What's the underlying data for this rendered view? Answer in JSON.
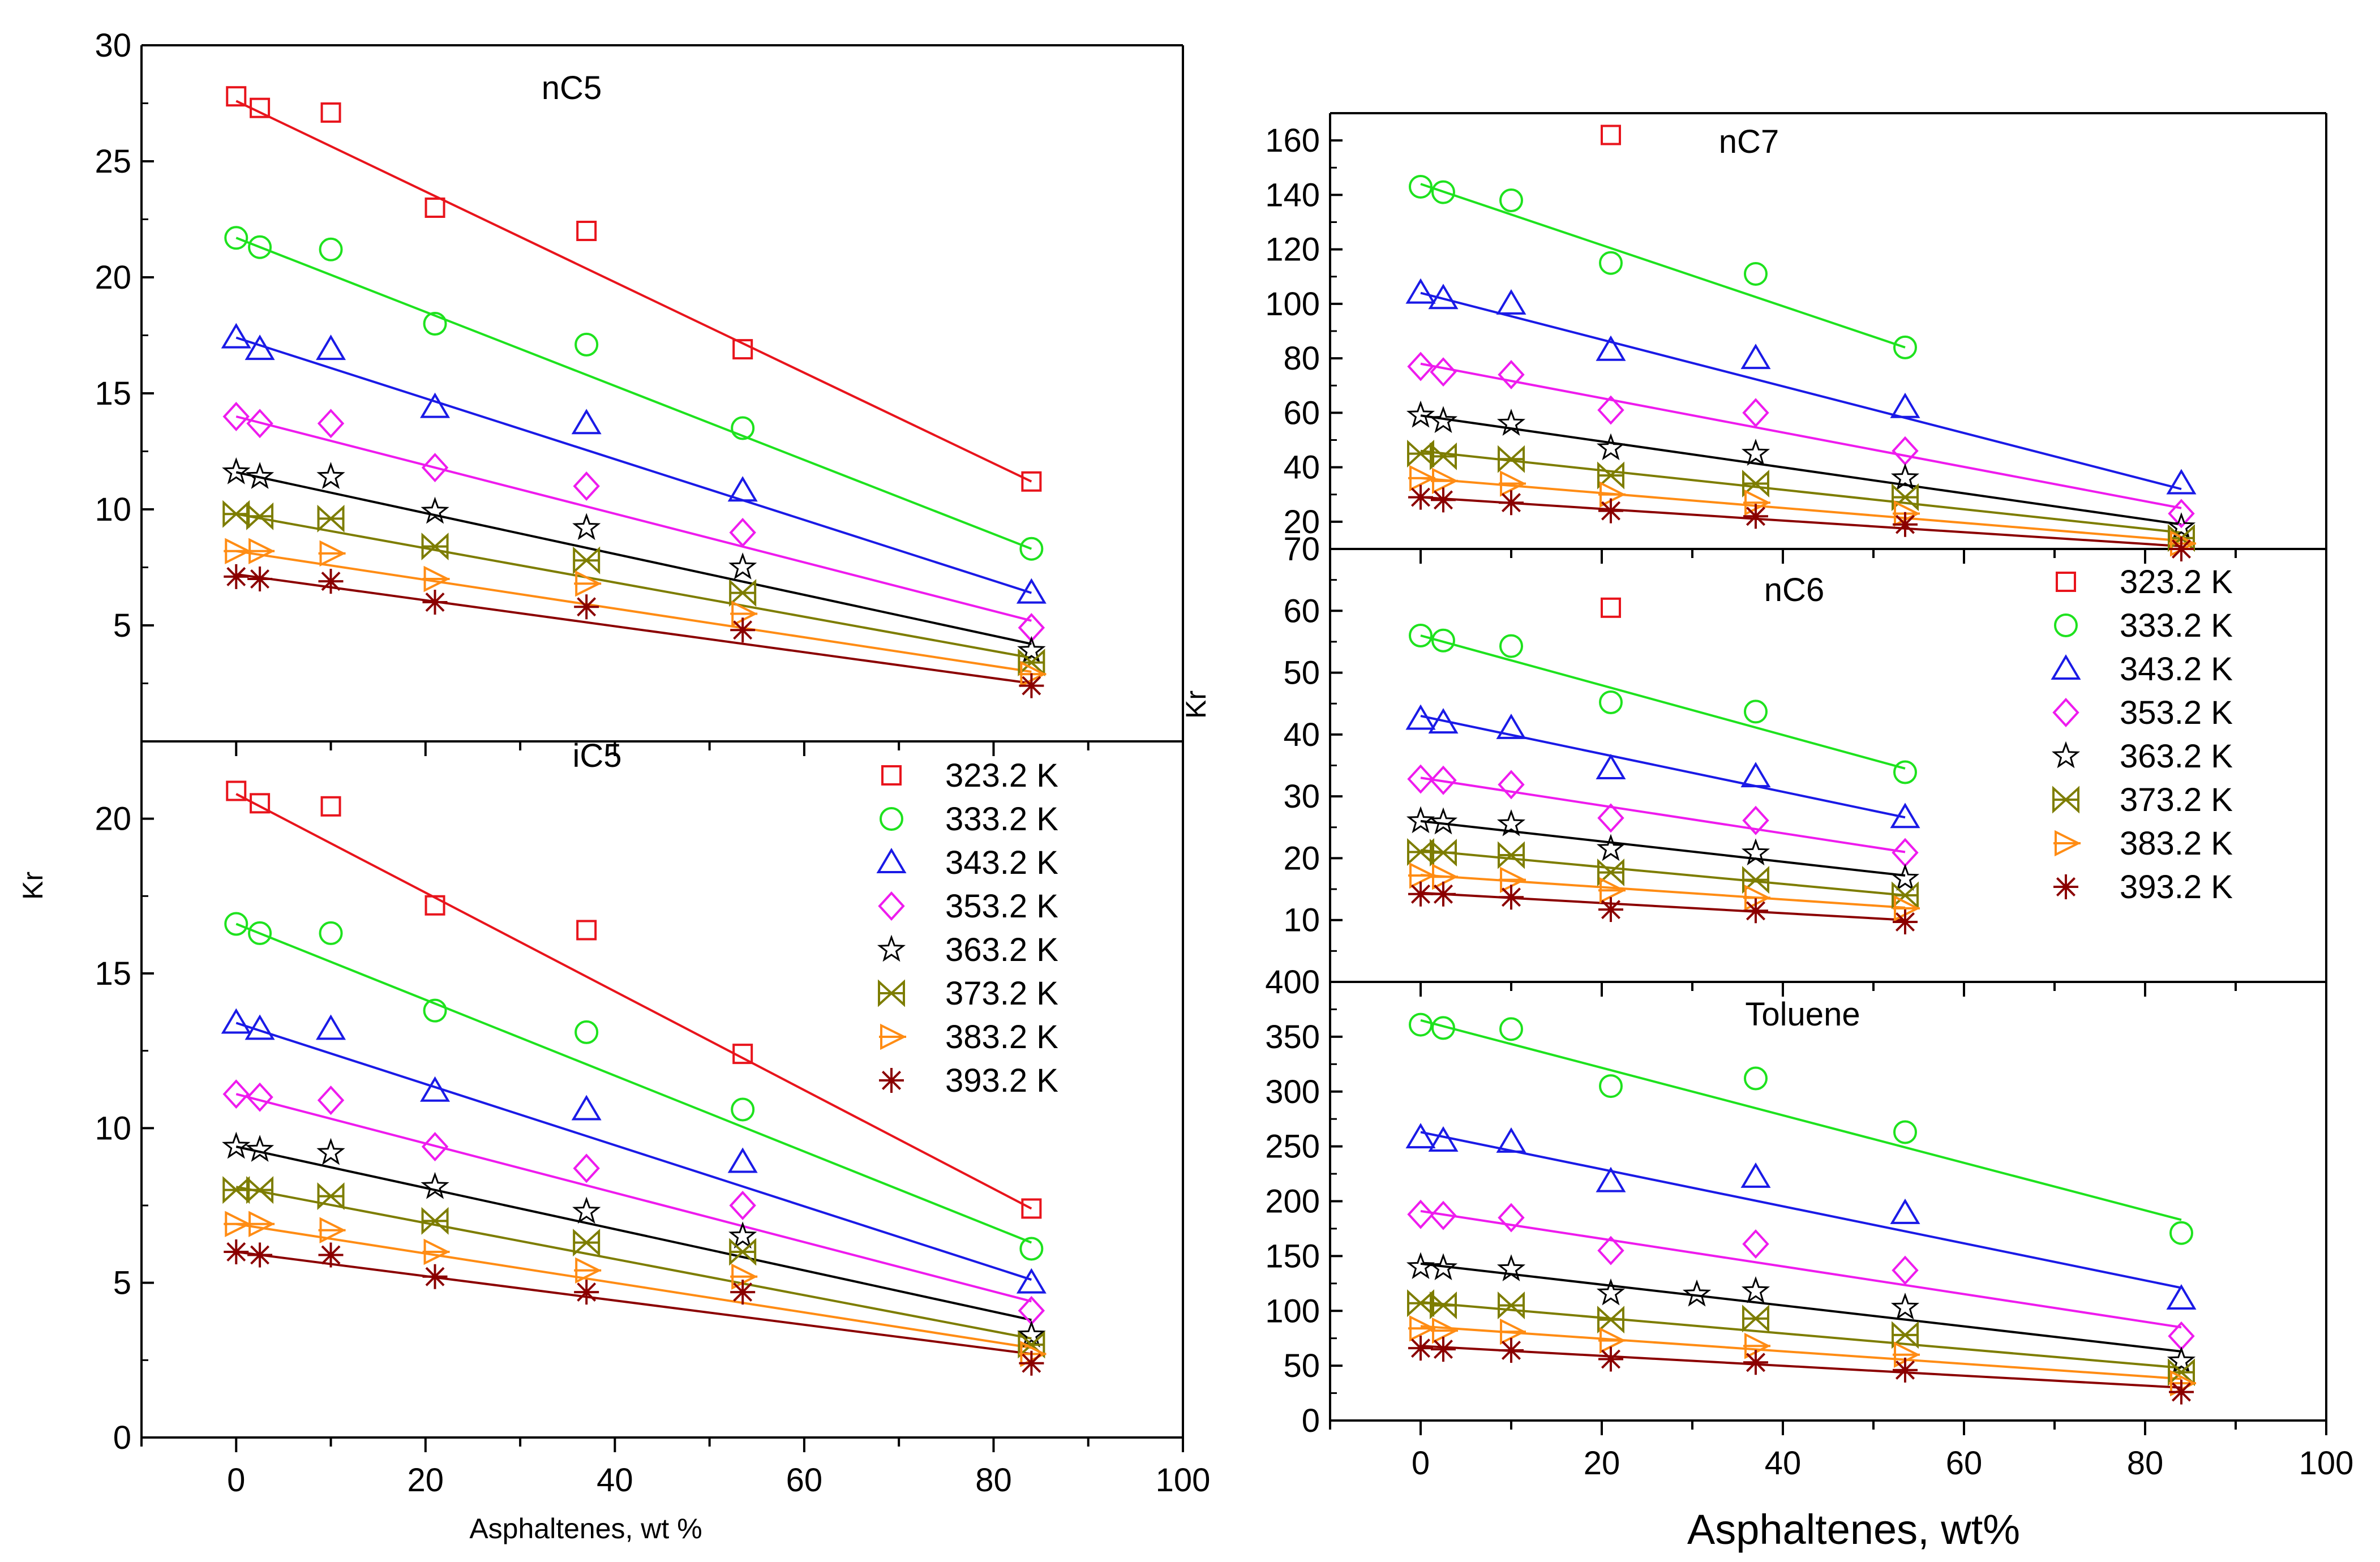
{
  "figure": {
    "left_xlabel": "Asphaltenes, wt %",
    "right_xlabel": "Asphaltenes, wt%",
    "left_ylabel": "Kr",
    "right_ylabel": "Kr"
  },
  "series_styles": [
    {
      "name": "323.2 K",
      "color": "#e8141c",
      "marker": "square"
    },
    {
      "name": "333.2 K",
      "color": "#1ee21e",
      "marker": "circle"
    },
    {
      "name": "343.2 K",
      "color": "#1a1ae6",
      "marker": "triangle"
    },
    {
      "name": "353.2 K",
      "color": "#ee1bee",
      "marker": "diamond"
    },
    {
      "name": "363.2 K",
      "color": "#000000",
      "marker": "star"
    },
    {
      "name": "373.2 K",
      "color": "#7d7d00",
      "marker": "bowtie"
    },
    {
      "name": "383.2 K",
      "color": "#ff8c14",
      "marker": "tri-right"
    },
    {
      "name": "393.2 K",
      "color": "#8b0000",
      "marker": "asterisk"
    }
  ],
  "chart_data": [
    {
      "type": "scatter",
      "title": "nC5",
      "xlabel": "",
      "ylabel": "",
      "xlim": [
        -10,
        100
      ],
      "ylim": [
        0,
        30
      ],
      "ytick_values": [
        5,
        10,
        15,
        20,
        25,
        30
      ],
      "show_x_ticklabels": false,
      "fit_range": [
        0,
        84
      ],
      "series": [
        {
          "name": "323.2 K",
          "x": [
            0,
            2.5,
            10,
            21,
            37,
            53.5,
            84
          ],
          "y": [
            27.8,
            27.3,
            27.1,
            23.0,
            22.0,
            16.9,
            11.2
          ],
          "fit": [
            27.6,
            11.2
          ]
        },
        {
          "name": "333.2 K",
          "x": [
            0,
            2.5,
            10,
            21,
            37,
            53.5,
            84
          ],
          "y": [
            21.7,
            21.3,
            21.2,
            18.0,
            17.1,
            13.5,
            8.3
          ],
          "fit": [
            21.7,
            8.3
          ]
        },
        {
          "name": "343.2 K",
          "x": [
            0,
            2.5,
            10,
            21,
            37,
            53.5,
            84
          ],
          "y": [
            17.4,
            16.9,
            16.9,
            14.4,
            13.7,
            10.8,
            6.4
          ],
          "fit": [
            17.4,
            6.4
          ]
        },
        {
          "name": "353.2 K",
          "x": [
            0,
            2.5,
            10,
            21,
            37,
            53.5,
            84
          ],
          "y": [
            14.0,
            13.7,
            13.7,
            11.8,
            11.0,
            9.0,
            4.9
          ],
          "fit": [
            14.0,
            5.2
          ]
        },
        {
          "name": "363.2 K",
          "x": [
            0,
            2.5,
            10,
            21,
            37,
            53.5,
            84
          ],
          "y": [
            11.6,
            11.4,
            11.4,
            9.9,
            9.2,
            7.5,
            3.9
          ],
          "fit": [
            11.6,
            4.2
          ]
        },
        {
          "name": "373.2 K",
          "x": [
            0,
            2.5,
            10,
            21,
            37,
            53.5,
            84
          ],
          "y": [
            9.8,
            9.7,
            9.6,
            8.4,
            7.8,
            6.4,
            3.4
          ],
          "fit": [
            9.8,
            3.6
          ]
        },
        {
          "name": "383.2 K",
          "x": [
            0,
            2.5,
            10,
            21,
            37,
            53.5,
            84
          ],
          "y": [
            8.2,
            8.2,
            8.1,
            7.0,
            6.8,
            5.5,
            2.9
          ],
          "fit": [
            8.2,
            3.0
          ]
        },
        {
          "name": "393.2 K",
          "x": [
            0,
            2.5,
            10,
            21,
            37,
            53.5,
            84
          ],
          "y": [
            7.1,
            7.0,
            6.9,
            6.0,
            5.8,
            4.8,
            2.4
          ],
          "fit": [
            7.2,
            2.5
          ]
        }
      ]
    },
    {
      "type": "scatter",
      "title": "iC5",
      "xlabel": "Asphaltenes, wt %",
      "ylabel": "Kr",
      "xlim": [
        -10,
        100
      ],
      "ylim": [
        0,
        22.5
      ],
      "xtick_values": [
        0,
        20,
        40,
        60,
        80,
        100
      ],
      "ytick_values": [
        0,
        5,
        10,
        15,
        20
      ],
      "fit_range": [
        0,
        84
      ],
      "series": [
        {
          "name": "323.2 K",
          "x": [
            0,
            2.5,
            10,
            21,
            37,
            53.5,
            84
          ],
          "y": [
            20.9,
            20.5,
            20.4,
            17.2,
            16.4,
            12.4,
            7.4
          ],
          "fit": [
            20.8,
            7.4
          ]
        },
        {
          "name": "333.2 K",
          "x": [
            0,
            2.5,
            10,
            21,
            37,
            53.5,
            84
          ],
          "y": [
            16.6,
            16.3,
            16.3,
            13.8,
            13.1,
            10.6,
            6.1
          ],
          "fit": [
            16.6,
            6.3
          ]
        },
        {
          "name": "343.2 K",
          "x": [
            0,
            2.5,
            10,
            21,
            37,
            53.5,
            84
          ],
          "y": [
            13.4,
            13.2,
            13.2,
            11.2,
            10.6,
            8.9,
            5.0
          ],
          "fit": [
            13.4,
            5.1
          ]
        },
        {
          "name": "353.2 K",
          "x": [
            0,
            2.5,
            10,
            21,
            37,
            53.5,
            84
          ],
          "y": [
            11.1,
            11.0,
            10.9,
            9.4,
            8.7,
            7.5,
            4.1
          ],
          "fit": [
            11.1,
            4.4
          ]
        },
        {
          "name": "363.2 K",
          "x": [
            0,
            2.5,
            10,
            21,
            37,
            53.5,
            84
          ],
          "y": [
            9.4,
            9.3,
            9.2,
            8.1,
            7.3,
            6.5,
            3.3
          ],
          "fit": [
            9.4,
            3.8
          ]
        },
        {
          "name": "373.2 K",
          "x": [
            0,
            2.5,
            10,
            21,
            37,
            53.5,
            84
          ],
          "y": [
            8.0,
            8.0,
            7.8,
            7.0,
            6.3,
            6.0,
            3.0
          ],
          "fit": [
            8.1,
            3.2
          ]
        },
        {
          "name": "383.2 K",
          "x": [
            0,
            2.5,
            10,
            21,
            37,
            53.5,
            84
          ],
          "y": [
            6.9,
            6.9,
            6.7,
            6.0,
            5.4,
            5.2,
            2.7
          ],
          "fit": [
            6.9,
            2.9
          ]
        },
        {
          "name": "393.2 K",
          "x": [
            0,
            2.5,
            10,
            21,
            37,
            53.5,
            84
          ],
          "y": [
            6.0,
            5.9,
            5.9,
            5.2,
            4.7,
            4.7,
            2.4
          ],
          "fit": [
            6.0,
            2.7
          ]
        }
      ],
      "legend": {
        "position": "top-right",
        "entries": [
          "323.2 K",
          "333.2 K",
          "343.2 K",
          "353.2 K",
          "363.2 K",
          "373.2 K",
          "383.2 K",
          "393.2 K"
        ]
      }
    },
    {
      "type": "scatter",
      "title": "nC7",
      "xlabel": "",
      "ylabel": "",
      "xlim": [
        -10,
        100
      ],
      "ylim": [
        10,
        170
      ],
      "ytick_values": [
        20,
        40,
        60,
        80,
        100,
        120,
        140,
        160
      ],
      "show_x_ticklabels": false,
      "series": [
        {
          "name": "323.2 K",
          "x": [
            21
          ],
          "y": [
            162
          ],
          "fit": null
        },
        {
          "name": "333.2 K",
          "x": [
            0,
            2.5,
            10,
            21,
            37,
            53.5
          ],
          "y": [
            143,
            141,
            138,
            115,
            111,
            84
          ],
          "fit": [
            144,
            84
          ],
          "fit_range": [
            0,
            53.5
          ]
        },
        {
          "name": "343.2 K",
          "x": [
            0,
            2.5,
            10,
            21,
            37,
            53.5,
            84
          ],
          "y": [
            104,
            102,
            100,
            83,
            80,
            62,
            34
          ],
          "fit": [
            104,
            32
          ],
          "fit_range": [
            0,
            84
          ]
        },
        {
          "name": "353.2 K",
          "x": [
            0,
            2.5,
            10,
            21,
            37,
            53.5,
            84
          ],
          "y": [
            77,
            75,
            74,
            61,
            60,
            46,
            23
          ],
          "fit": [
            78,
            25
          ],
          "fit_range": [
            0,
            84
          ]
        },
        {
          "name": "363.2 K",
          "x": [
            0,
            2.5,
            10,
            21,
            37,
            53.5,
            84
          ],
          "y": [
            59,
            57,
            56,
            47,
            45,
            36,
            18
          ],
          "fit": [
            59,
            19
          ],
          "fit_range": [
            0,
            84
          ]
        },
        {
          "name": "373.2 K",
          "x": [
            0,
            2.5,
            10,
            21,
            37,
            53.5,
            84
          ],
          "y": [
            45,
            44,
            43,
            37,
            34,
            29,
            14
          ],
          "fit": [
            46,
            16
          ],
          "fit_range": [
            0,
            84
          ]
        },
        {
          "name": "383.2 K",
          "x": [
            0,
            2.5,
            10,
            21,
            37,
            53.5,
            84
          ],
          "y": [
            36,
            35,
            34,
            30,
            27,
            23,
            12
          ],
          "fit": [
            36,
            13
          ],
          "fit_range": [
            0,
            84
          ]
        },
        {
          "name": "393.2 K",
          "x": [
            0,
            2.5,
            10,
            21,
            37,
            53.5,
            84
          ],
          "y": [
            29,
            28,
            27,
            24,
            22,
            19,
            10
          ],
          "fit": [
            29,
            11
          ],
          "fit_range": [
            0,
            84
          ]
        }
      ]
    },
    {
      "type": "scatter",
      "title": "nC6",
      "xlabel": "",
      "ylabel": "Kr",
      "xlim": [
        -10,
        100
      ],
      "ylim": [
        0,
        70
      ],
      "ytick_values": [
        10,
        20,
        30,
        40,
        50,
        60,
        70
      ],
      "show_x_ticklabels": false,
      "fit_range": [
        0,
        53.5
      ],
      "series": [
        {
          "name": "323.2 K",
          "x": [
            21
          ],
          "y": [
            60.5
          ],
          "fit": null
        },
        {
          "name": "333.2 K",
          "x": [
            0,
            2.5,
            10,
            21,
            37,
            53.5
          ],
          "y": [
            56.0,
            55.2,
            54.3,
            45.2,
            43.7,
            33.9
          ],
          "fit": [
            56.0,
            34.5
          ]
        },
        {
          "name": "343.2 K",
          "x": [
            0,
            2.5,
            10,
            21,
            37,
            53.5
          ],
          "y": [
            42.5,
            41.9,
            41.0,
            34.5,
            33.2,
            26.6
          ],
          "fit": [
            43.0,
            26.6
          ]
        },
        {
          "name": "353.2 K",
          "x": [
            0,
            2.5,
            10,
            21,
            37,
            53.5
          ],
          "y": [
            32.8,
            32.6,
            31.9,
            26.5,
            26.1,
            20.9
          ],
          "fit": [
            33.0,
            21.0
          ]
        },
        {
          "name": "363.2 K",
          "x": [
            0,
            2.5,
            10,
            21,
            37,
            53.5
          ],
          "y": [
            26.0,
            25.8,
            25.5,
            21.5,
            20.8,
            16.7
          ],
          "fit": [
            26.0,
            17.2
          ]
        },
        {
          "name": "373.2 K",
          "x": [
            0,
            2.5,
            10,
            21,
            37,
            53.5
          ],
          "y": [
            21.0,
            20.9,
            20.5,
            17.7,
            16.5,
            14.0
          ],
          "fit": [
            21.3,
            14.0
          ]
        },
        {
          "name": "383.2 K",
          "x": [
            0,
            2.5,
            10,
            21,
            37,
            53.5
          ],
          "y": [
            17.2,
            17.0,
            16.5,
            14.8,
            13.6,
            11.9
          ],
          "fit": [
            17.3,
            12.0
          ]
        },
        {
          "name": "393.2 K",
          "x": [
            0,
            2.5,
            10,
            21,
            37,
            53.5
          ],
          "y": [
            14.2,
            14.2,
            13.7,
            11.7,
            11.5,
            9.7
          ],
          "fit": [
            14.4,
            10.0
          ]
        }
      ],
      "legend": {
        "position": "top-right",
        "entries": [
          "323.2 K",
          "333.2 K",
          "343.2 K",
          "353.2 K",
          "363.2 K",
          "373.2 K",
          "383.2 K",
          "393.2 K"
        ]
      }
    },
    {
      "type": "scatter",
      "title": "Toluene",
      "xlabel": "Asphaltenes, wt%",
      "ylabel": "",
      "xlim": [
        -10,
        100
      ],
      "ylim": [
        0,
        400
      ],
      "xtick_values": [
        0,
        20,
        40,
        60,
        80,
        100
      ],
      "ytick_values": [
        0,
        50,
        100,
        150,
        200,
        250,
        300,
        350,
        400
      ],
      "fit_range": [
        0,
        84
      ],
      "series": [
        {
          "name": "333.2 K",
          "x": [
            0,
            2.5,
            10,
            21,
            37,
            53.5,
            84
          ],
          "y": [
            361,
            358,
            357,
            305,
            312,
            263,
            171
          ],
          "fit": [
            365,
            183
          ]
        },
        {
          "name": "343.2 K",
          "x": [
            0,
            2.5,
            10,
            21,
            37,
            53.5,
            84
          ],
          "y": [
            258,
            255,
            254,
            218,
            222,
            189,
            111
          ],
          "fit": [
            263,
            121
          ]
        },
        {
          "name": "353.2 K",
          "x": [
            0,
            2.5,
            10,
            21,
            37,
            53.5,
            84
          ],
          "y": [
            188,
            187,
            185,
            155,
            161,
            137,
            77
          ],
          "fit": [
            191,
            85
          ]
        },
        {
          "name": "363.2 K",
          "x": [
            0,
            2.5,
            10,
            21,
            30.5,
            37,
            53.5,
            84
          ],
          "y": [
            140,
            139,
            138,
            116,
            115,
            118,
            103,
            54
          ],
          "fit": [
            143,
            63
          ]
        },
        {
          "name": "373.2 K",
          "x": [
            0,
            2.5,
            10,
            21,
            37,
            53.5,
            84
          ],
          "y": [
            107,
            105,
            105,
            92,
            93,
            78,
            44
          ],
          "fit": [
            108,
            48
          ]
        },
        {
          "name": "383.2 K",
          "x": [
            0,
            2.5,
            10,
            21,
            37,
            53.5,
            84
          ],
          "y": [
            84,
            82,
            81,
            73,
            68,
            60,
            34
          ],
          "fit": [
            86,
            38
          ]
        },
        {
          "name": "393.2 K",
          "x": [
            0,
            2.5,
            10,
            21,
            37,
            53.5,
            84
          ],
          "y": [
            66,
            65,
            64,
            56,
            53,
            46,
            26
          ],
          "fit": [
            68,
            30
          ]
        }
      ]
    }
  ]
}
